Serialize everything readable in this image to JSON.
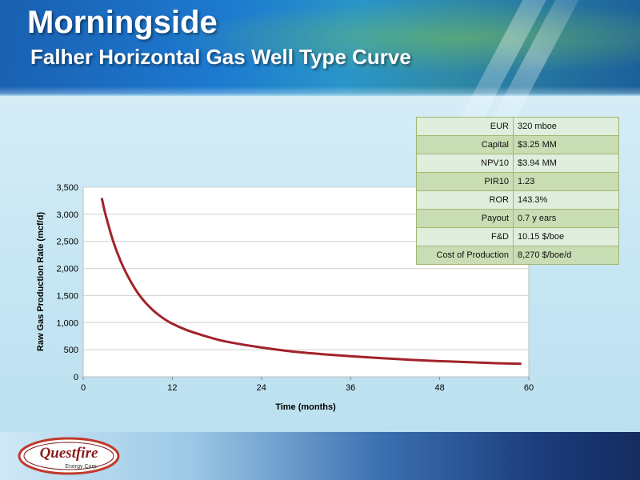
{
  "slide": {
    "title": "Morningside",
    "subtitle": "Falher Horizontal Gas Well Type Curve"
  },
  "metrics": [
    {
      "label": "EUR",
      "value": "320 mboe"
    },
    {
      "label": "Capital",
      "value": "$3.25 MM"
    },
    {
      "label": "NPV10",
      "value": "$3.94 MM"
    },
    {
      "label": "PIR10",
      "value": "1.23"
    },
    {
      "label": "ROR",
      "value": "143.3%"
    },
    {
      "label": "Payout",
      "value": "0.7 y ears"
    },
    {
      "label": "F&D",
      "value": "10.15 $/boe"
    },
    {
      "label": "Cost of Production",
      "value": "8,270 $/boe/d"
    }
  ],
  "logo": {
    "text1": "Questfire",
    "text2": "Energy Corp."
  },
  "colors": {
    "curve": "#a3222a",
    "plot_bg": "#ffffff",
    "grid": "#d0d0d0"
  },
  "chart_data": {
    "type": "line",
    "title": "",
    "xlabel": "Time (months)",
    "ylabel": "Raw Gas Production Rate (mcf/d)",
    "xlim": [
      0,
      60
    ],
    "ylim": [
      0,
      3500
    ],
    "x_ticks": [
      0,
      12,
      24,
      36,
      48,
      60
    ],
    "y_ticks": [
      0,
      500,
      1000,
      1500,
      2000,
      2500,
      3000,
      3500
    ],
    "x_tick_labels": [
      "0",
      "12",
      "24",
      "36",
      "48",
      "60"
    ],
    "y_tick_labels": [
      "0",
      "500",
      "1,000",
      "1,500",
      "2,000",
      "2,500",
      "3,000",
      "3,500"
    ],
    "grid": true,
    "series": [
      {
        "x": [
          2.5,
          3,
          4,
          5,
          6,
          7,
          8,
          9,
          10,
          11,
          12,
          14,
          16,
          18,
          20,
          24,
          28,
          32,
          36,
          40,
          44,
          48,
          52,
          56,
          59
        ],
        "y": [
          3300,
          3000,
          2520,
          2150,
          1860,
          1620,
          1430,
          1280,
          1160,
          1060,
          980,
          860,
          770,
          690,
          630,
          540,
          470,
          420,
          380,
          345,
          315,
          290,
          270,
          250,
          240
        ]
      }
    ]
  }
}
